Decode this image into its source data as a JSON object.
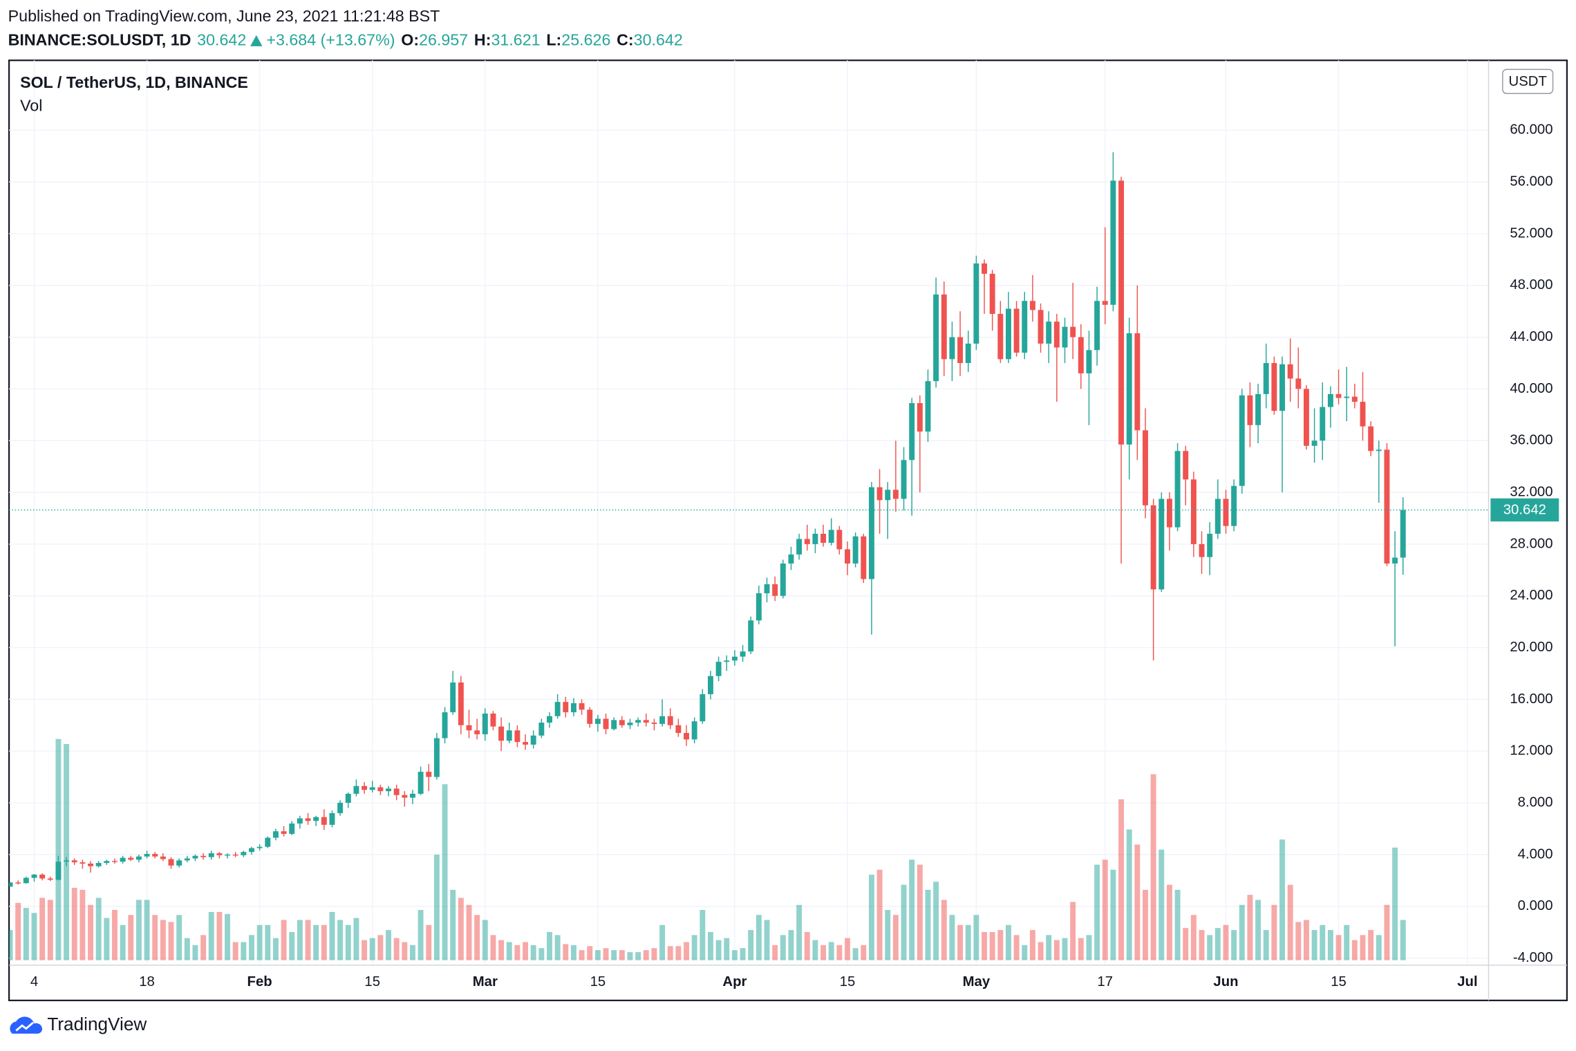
{
  "header": {
    "published": "Published on TradingView.com, June 23, 2021 11:21:48 BST",
    "symbol": "BINANCE:SOLUSDT, 1D",
    "change": "+3.684 (+13.67%)",
    "o_label": "O:",
    "h_label": "H:",
    "l_label": "L:",
    "c_label": "C:"
  },
  "footer": {
    "brand": "TradingView"
  },
  "chart_data": {
    "type": "candlestick",
    "title": "SOL / TetherUS, 1D, BINANCE",
    "indicator": "Vol",
    "currency": "USDT",
    "colors": {
      "up": "#26a69a",
      "down": "#ef5350"
    },
    "grid": true,
    "xlim": [
      "2021-01-01",
      "2021-07-03"
    ],
    "xticks": [
      {
        "value": "2021-01-04",
        "label": "4"
      },
      {
        "value": "2021-01-18",
        "label": "18"
      },
      {
        "value": "2021-02-01",
        "label": "Feb"
      },
      {
        "value": "2021-02-15",
        "label": "15"
      },
      {
        "value": "2021-03-01",
        "label": "Mar"
      },
      {
        "value": "2021-03-15",
        "label": "15"
      },
      {
        "value": "2021-04-01",
        "label": "Apr"
      },
      {
        "value": "2021-04-15",
        "label": "15"
      },
      {
        "value": "2021-05-01",
        "label": "May"
      },
      {
        "value": "2021-05-17",
        "label": "17"
      },
      {
        "value": "2021-06-01",
        "label": "Jun"
      },
      {
        "value": "2021-06-15",
        "label": "15"
      },
      {
        "value": "2021-07-01",
        "label": "Jul"
      }
    ],
    "ylim": [
      -4.4,
      65.4
    ],
    "yticks": [
      {
        "value": -4,
        "label": "-4.000"
      },
      {
        "value": 0,
        "label": "0.000"
      },
      {
        "value": 4,
        "label": "4.000"
      },
      {
        "value": 8,
        "label": "8.000"
      },
      {
        "value": 12,
        "label": "12.000"
      },
      {
        "value": 16,
        "label": "16.000"
      },
      {
        "value": 20,
        "label": "20.000"
      },
      {
        "value": 24,
        "label": "24.000"
      },
      {
        "value": 28,
        "label": "28.000"
      },
      {
        "value": 32,
        "label": "32.000"
      },
      {
        "value": 36,
        "label": "36.000"
      },
      {
        "value": 40,
        "label": "40.000"
      },
      {
        "value": 44,
        "label": "44.000"
      },
      {
        "value": 48,
        "label": "48.000"
      },
      {
        "value": 52,
        "label": "52.000"
      },
      {
        "value": 56,
        "label": "56.000"
      },
      {
        "value": 60,
        "label": "60.000"
      }
    ],
    "x": [
      "2021-01-01",
      "2021-01-02",
      "2021-01-03",
      "2021-01-04",
      "2021-01-05",
      "2021-01-06",
      "2021-01-07",
      "2021-01-08",
      "2021-01-09",
      "2021-01-10",
      "2021-01-11",
      "2021-01-12",
      "2021-01-13",
      "2021-01-14",
      "2021-01-15",
      "2021-01-16",
      "2021-01-17",
      "2021-01-18",
      "2021-01-19",
      "2021-01-20",
      "2021-01-21",
      "2021-01-22",
      "2021-01-23",
      "2021-01-24",
      "2021-01-25",
      "2021-01-26",
      "2021-01-27",
      "2021-01-28",
      "2021-01-29",
      "2021-01-30",
      "2021-01-31",
      "2021-02-01",
      "2021-02-02",
      "2021-02-03",
      "2021-02-04",
      "2021-02-05",
      "2021-02-06",
      "2021-02-07",
      "2021-02-08",
      "2021-02-09",
      "2021-02-10",
      "2021-02-11",
      "2021-02-12",
      "2021-02-13",
      "2021-02-14",
      "2021-02-15",
      "2021-02-16",
      "2021-02-17",
      "2021-02-18",
      "2021-02-19",
      "2021-02-20",
      "2021-02-21",
      "2021-02-22",
      "2021-02-23",
      "2021-02-24",
      "2021-02-25",
      "2021-02-26",
      "2021-02-27",
      "2021-02-28",
      "2021-03-01",
      "2021-03-02",
      "2021-03-03",
      "2021-03-04",
      "2021-03-05",
      "2021-03-06",
      "2021-03-07",
      "2021-03-08",
      "2021-03-09",
      "2021-03-10",
      "2021-03-11",
      "2021-03-12",
      "2021-03-13",
      "2021-03-14",
      "2021-03-15",
      "2021-03-16",
      "2021-03-17",
      "2021-03-18",
      "2021-03-19",
      "2021-03-20",
      "2021-03-21",
      "2021-03-22",
      "2021-03-23",
      "2021-03-24",
      "2021-03-25",
      "2021-03-26",
      "2021-03-27",
      "2021-03-28",
      "2021-03-29",
      "2021-03-30",
      "2021-03-31",
      "2021-04-01",
      "2021-04-02",
      "2021-04-03",
      "2021-04-04",
      "2021-04-05",
      "2021-04-06",
      "2021-04-07",
      "2021-04-08",
      "2021-04-09",
      "2021-04-10",
      "2021-04-11",
      "2021-04-12",
      "2021-04-13",
      "2021-04-14",
      "2021-04-15",
      "2021-04-16",
      "2021-04-17",
      "2021-04-18",
      "2021-04-19",
      "2021-04-20",
      "2021-04-21",
      "2021-04-22",
      "2021-04-23",
      "2021-04-24",
      "2021-04-25",
      "2021-04-26",
      "2021-04-27",
      "2021-04-28",
      "2021-04-29",
      "2021-04-30",
      "2021-05-01",
      "2021-05-02",
      "2021-05-03",
      "2021-05-04",
      "2021-05-05",
      "2021-05-06",
      "2021-05-07",
      "2021-05-08",
      "2021-05-09",
      "2021-05-10",
      "2021-05-11",
      "2021-05-12",
      "2021-05-13",
      "2021-05-14",
      "2021-05-15",
      "2021-05-16",
      "2021-05-17",
      "2021-05-18",
      "2021-05-19",
      "2021-05-20",
      "2021-05-21",
      "2021-05-22",
      "2021-05-23",
      "2021-05-24",
      "2021-05-25",
      "2021-05-26",
      "2021-05-27",
      "2021-05-28",
      "2021-05-29",
      "2021-05-30",
      "2021-05-31",
      "2021-06-01",
      "2021-06-02",
      "2021-06-03",
      "2021-06-04",
      "2021-06-05",
      "2021-06-06",
      "2021-06-07",
      "2021-06-08",
      "2021-06-09",
      "2021-06-10",
      "2021-06-11",
      "2021-06-12",
      "2021-06-13",
      "2021-06-14",
      "2021-06-15",
      "2021-06-16",
      "2021-06-17",
      "2021-06-18",
      "2021-06-19",
      "2021-06-20",
      "2021-06-21",
      "2021-06-22",
      "2021-06-23"
    ],
    "open": [
      1.52,
      1.84,
      1.79,
      2.2,
      2.45,
      2.15,
      2.05,
      3.45,
      3.55,
      3.4,
      3.3,
      3.1,
      3.35,
      3.5,
      3.45,
      3.75,
      3.6,
      3.85,
      4.05,
      3.85,
      3.65,
      3.15,
      3.55,
      3.7,
      3.9,
      3.8,
      4.1,
      3.95,
      4.0,
      3.95,
      4.2,
      4.5,
      4.6,
      5.3,
      5.8,
      5.6,
      6.4,
      6.8,
      6.6,
      6.9,
      6.3,
      7.2,
      8.0,
      8.7,
      9.3,
      9.0,
      9.2,
      8.9,
      9.1,
      8.6,
      8.4,
      8.7,
      10.4,
      10.0,
      13.0,
      15.0,
      17.3,
      14.0,
      13.6,
      13.3,
      14.9,
      13.9,
      12.8,
      13.6,
      12.7,
      12.5,
      13.2,
      14.2,
      14.7,
      15.8,
      15.0,
      15.7,
      15.2,
      14.1,
      14.5,
      13.7,
      14.4,
      14.0,
      14.2,
      14.4,
      14.2,
      14.1,
      14.7,
      14.0,
      13.4,
      12.9,
      14.3,
      16.4,
      17.8,
      18.9,
      19.0,
      19.3,
      19.7,
      22.1,
      24.2,
      24.9,
      24.0,
      26.5,
      27.2,
      28.4,
      28.0,
      28.8,
      28.1,
      29.1,
      27.6,
      26.5,
      28.6,
      25.3,
      32.4,
      31.4,
      32.2,
      31.5,
      34.5,
      38.9,
      36.7,
      40.6,
      47.3,
      42.3,
      44.0,
      42.0,
      43.5,
      49.7,
      48.9,
      45.8,
      42.3,
      46.2,
      42.8,
      46.8,
      46.1,
      43.5,
      45.2,
      43.2,
      44.8,
      44.0,
      41.2,
      43.0,
      46.8,
      46.5,
      56.1,
      35.7,
      44.3,
      36.8,
      31.0,
      24.5,
      31.5,
      29.3,
      35.2,
      33.0,
      28.0,
      27.0,
      28.8,
      31.5,
      29.4,
      32.5,
      39.5,
      37.2,
      39.6,
      42.0,
      38.3,
      41.9,
      40.8,
      40.0,
      35.6,
      36.0,
      38.6,
      39.6,
      39.3,
      39.4,
      39.0,
      37.1,
      35.2,
      35.3,
      26.5,
      26.957
    ],
    "high": [
      1.88,
      2.0,
      2.3,
      2.5,
      2.55,
      2.3,
      3.9,
      3.8,
      3.7,
      3.6,
      3.5,
      3.5,
      3.6,
      3.7,
      3.9,
      3.9,
      4.0,
      4.3,
      4.2,
      4.1,
      3.8,
      3.7,
      3.9,
      4.0,
      4.1,
      4.3,
      4.2,
      4.1,
      4.2,
      4.3,
      4.6,
      4.8,
      5.4,
      6.0,
      6.2,
      6.6,
      7.0,
      7.2,
      7.0,
      7.5,
      7.4,
      8.2,
      8.8,
      9.8,
      9.6,
      9.7,
      9.4,
      9.3,
      9.4,
      8.9,
      9.0,
      10.8,
      11.0,
      13.4,
      15.4,
      18.2,
      17.8,
      15.2,
      14.5,
      15.3,
      15.1,
      14.6,
      14.2,
      14.0,
      13.3,
      13.6,
      14.5,
      15.0,
      16.4,
      16.2,
      16.1,
      16.0,
      15.4,
      14.8,
      14.9,
      14.6,
      14.7,
      14.5,
      14.6,
      14.9,
      14.5,
      16.0,
      15.3,
      14.5,
      14.0,
      14.6,
      16.8,
      18.2,
      19.3,
      19.4,
      19.8,
      20.2,
      22.4,
      24.8,
      25.4,
      25.5,
      26.8,
      27.8,
      28.8,
      29.5,
      29.2,
      29.5,
      30.0,
      29.4,
      28.2,
      28.9,
      28.8,
      32.8,
      33.8,
      32.8,
      36.0,
      35.5,
      39.3,
      39.5,
      41.5,
      48.6,
      48.3,
      45.2,
      46.0,
      44.5,
      50.3,
      50.0,
      49.2,
      46.8,
      47.5,
      46.8,
      47.5,
      48.8,
      46.6,
      46.0,
      45.8,
      45.5,
      48.2,
      45.0,
      44.5,
      47.9,
      52.5,
      58.3,
      56.4,
      45.5,
      48.0,
      38.5,
      31.5,
      32.0,
      32.0,
      35.8,
      35.6,
      33.6,
      29.0,
      29.7,
      33.0,
      32.2,
      33.0,
      40.0,
      40.5,
      40.4,
      43.5,
      42.5,
      42.5,
      43.9,
      43.2,
      40.3,
      38.5,
      40.5,
      40.2,
      41.5,
      41.7,
      40.4,
      41.3,
      37.5,
      36.0,
      35.8,
      29.0,
      31.621
    ],
    "low": [
      1.5,
      1.7,
      1.75,
      1.9,
      2.0,
      1.95,
      2.0,
      3.1,
      3.2,
      2.9,
      2.6,
      3.0,
      3.2,
      3.3,
      3.3,
      3.5,
      3.4,
      3.7,
      3.7,
      3.5,
      2.9,
      3.0,
      3.4,
      3.5,
      3.6,
      3.6,
      3.7,
      3.7,
      3.8,
      3.8,
      4.0,
      4.3,
      4.5,
      5.1,
      5.4,
      5.5,
      6.0,
      6.3,
      6.2,
      5.9,
      6.1,
      7.0,
      7.6,
      8.5,
      8.7,
      8.8,
      8.6,
      8.5,
      8.2,
      7.7,
      7.9,
      8.6,
      8.9,
      9.8,
      12.6,
      14.8,
      13.3,
      13.0,
      12.9,
      12.8,
      13.6,
      12.0,
      12.6,
      12.3,
      12.1,
      12.2,
      13.0,
      13.8,
      14.5,
      14.6,
      14.7,
      14.8,
      13.8,
      13.5,
      13.3,
      13.6,
      13.8,
      13.7,
      13.9,
      13.9,
      13.6,
      13.9,
      13.7,
      13.1,
      12.4,
      12.6,
      14.1,
      16.0,
      17.4,
      18.2,
      18.6,
      18.9,
      19.5,
      21.8,
      23.5,
      23.6,
      23.8,
      26.0,
      26.8,
      27.5,
      27.3,
      27.8,
      27.9,
      27.2,
      25.6,
      26.2,
      25.0,
      21.0,
      28.8,
      28.4,
      30.5,
      30.6,
      30.2,
      32.0,
      35.9,
      40.1,
      41.0,
      40.6,
      41.0,
      41.3,
      43.0,
      45.8,
      44.5,
      42.0,
      42.0,
      42.5,
      42.3,
      45.2,
      42.8,
      42.0,
      39.0,
      42.0,
      42.3,
      40.0,
      37.2,
      41.8,
      45.0,
      46.0,
      26.5,
      33.0,
      34.5,
      30.0,
      19.0,
      24.3,
      27.5,
      29.0,
      31.0,
      27.0,
      25.7,
      25.6,
      28.4,
      28.8,
      29.0,
      31.9,
      35.5,
      35.8,
      38.5,
      38.0,
      32.0,
      39.0,
      38.5,
      35.3,
      34.3,
      34.5,
      37.0,
      38.8,
      37.5,
      38.5,
      36.0,
      34.8,
      31.2,
      26.3,
      20.1,
      25.626
    ],
    "close": [
      1.84,
      1.79,
      2.2,
      2.45,
      2.15,
      2.05,
      3.45,
      3.55,
      3.4,
      3.3,
      3.1,
      3.35,
      3.5,
      3.45,
      3.75,
      3.6,
      3.85,
      4.05,
      3.85,
      3.65,
      3.15,
      3.55,
      3.7,
      3.9,
      3.8,
      4.1,
      3.95,
      4.0,
      3.95,
      4.2,
      4.5,
      4.6,
      5.3,
      5.8,
      5.6,
      6.4,
      6.8,
      6.6,
      6.9,
      6.3,
      7.2,
      8.0,
      8.7,
      9.3,
      9.0,
      9.2,
      8.9,
      9.1,
      8.6,
      8.4,
      8.7,
      10.4,
      10.0,
      13.0,
      15.0,
      17.3,
      14.0,
      13.6,
      13.3,
      14.9,
      13.9,
      12.8,
      13.6,
      12.7,
      12.5,
      13.2,
      14.2,
      14.7,
      15.8,
      15.0,
      15.7,
      15.2,
      14.1,
      14.5,
      13.7,
      14.4,
      14.0,
      14.2,
      14.4,
      14.2,
      14.1,
      14.7,
      14.0,
      13.4,
      12.9,
      14.3,
      16.4,
      17.8,
      18.9,
      19.0,
      19.3,
      19.7,
      22.1,
      24.2,
      24.9,
      24.0,
      26.5,
      27.2,
      28.4,
      28.0,
      28.8,
      28.1,
      29.1,
      27.6,
      26.5,
      28.6,
      25.3,
      32.4,
      31.4,
      32.2,
      31.5,
      34.5,
      38.9,
      36.7,
      40.6,
      47.3,
      42.3,
      44.0,
      42.0,
      43.5,
      49.7,
      48.9,
      45.8,
      42.3,
      46.2,
      42.8,
      46.8,
      46.1,
      43.5,
      45.2,
      43.2,
      44.8,
      44.0,
      41.2,
      43.0,
      46.8,
      46.5,
      56.1,
      35.7,
      44.3,
      36.8,
      31.0,
      24.5,
      31.5,
      29.3,
      35.2,
      33.0,
      28.0,
      27.0,
      28.8,
      31.5,
      29.4,
      32.5,
      39.5,
      37.2,
      39.6,
      42.0,
      38.3,
      41.9,
      40.8,
      40.0,
      35.6,
      36.0,
      38.6,
      39.6,
      39.3,
      39.4,
      39.0,
      37.1,
      35.2,
      35.3,
      26.5,
      26.957,
      30.642
    ],
    "volume": [
      30,
      57,
      52,
      47,
      62,
      60,
      220,
      215,
      72,
      70,
      55,
      62,
      42,
      50,
      35,
      45,
      60,
      60,
      45,
      40,
      38,
      45,
      22,
      15,
      25,
      48,
      48,
      46,
      18,
      18,
      25,
      35,
      35,
      22,
      40,
      28,
      40,
      40,
      35,
      35,
      48,
      40,
      35,
      42,
      20,
      22,
      25,
      30,
      22,
      18,
      15,
      50,
      35,
      105,
      175,
      70,
      62,
      55,
      45,
      40,
      25,
      20,
      18,
      15,
      18,
      15,
      12,
      28,
      25,
      16,
      15,
      10,
      14,
      10,
      12,
      10,
      10,
      8,
      8,
      10,
      12,
      35,
      14,
      14,
      18,
      25,
      50,
      28,
      20,
      22,
      10,
      12,
      30,
      45,
      40,
      15,
      25,
      30,
      55,
      28,
      20,
      15,
      18,
      15,
      22,
      12,
      15,
      85,
      90,
      50,
      45,
      75,
      100,
      95,
      70,
      78,
      60,
      45,
      35,
      35,
      45,
      28,
      28,
      30,
      35,
      25,
      15,
      30,
      18,
      25,
      20,
      22,
      58,
      22,
      25,
      95,
      100,
      90,
      160,
      130,
      115,
      70,
      185,
      110,
      75,
      70,
      32,
      45,
      30,
      25,
      32,
      35,
      30,
      55,
      65,
      60,
      30,
      55,
      120,
      75,
      38,
      40,
      30,
      35,
      30,
      25,
      35,
      20,
      25,
      30,
      25,
      55,
      112,
      40
    ]
  }
}
